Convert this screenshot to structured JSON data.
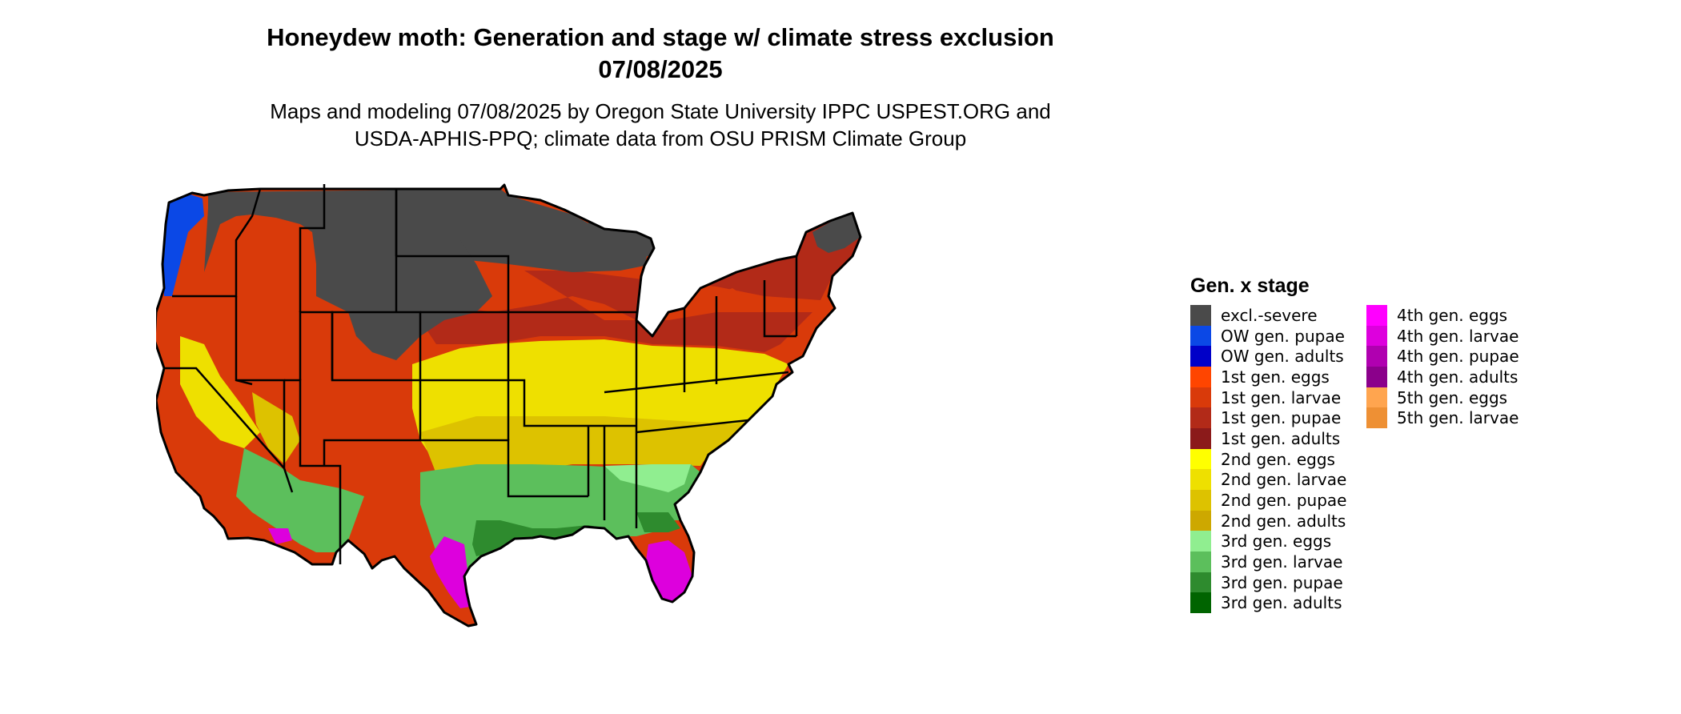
{
  "title": {
    "line1": "Honeydew moth: Generation and stage w/ climate stress exclusion",
    "line2": "07/08/2025"
  },
  "subtitle": {
    "line1": "Maps and modeling 07/08/2025 by Oregon State University IPPC USPEST.ORG and",
    "line2": "USDA-APHIS-PPQ; climate data from OSU PRISM Climate Group"
  },
  "legend": {
    "title": "Gen. x stage",
    "column1": [
      {
        "label": "excl.-severe",
        "color": "#4a4a4a"
      },
      {
        "label": "OW gen. pupae",
        "color": "#0b48e6"
      },
      {
        "label": "OW gen. adults",
        "color": "#0000c8"
      },
      {
        "label": "1st gen. eggs",
        "color": "#ff4500"
      },
      {
        "label": "1st gen. larvae",
        "color": "#d93a0a"
      },
      {
        "label": "1st gen. pupae",
        "color": "#b22a18"
      },
      {
        "label": "1st gen. adults",
        "color": "#8b1a1a"
      },
      {
        "label": "2nd gen. eggs",
        "color": "#ffff00"
      },
      {
        "label": "2nd gen. larvae",
        "color": "#eee000"
      },
      {
        "label": "2nd gen. pupae",
        "color": "#ddc200"
      },
      {
        "label": "2nd gen. adults",
        "color": "#cda800"
      },
      {
        "label": "3rd gen. eggs",
        "color": "#90ee90"
      },
      {
        "label": "3rd gen. larvae",
        "color": "#5cbf5c"
      },
      {
        "label": "3rd gen. pupae",
        "color": "#2e8b2e"
      },
      {
        "label": "3rd gen. adults",
        "color": "#006400"
      }
    ],
    "column2": [
      {
        "label": "4th gen. eggs",
        "color": "#ff00ff"
      },
      {
        "label": "4th gen. larvae",
        "color": "#dd00dd"
      },
      {
        "label": "4th gen. pupae",
        "color": "#b000b0"
      },
      {
        "label": "4th gen. adults",
        "color": "#8b008b"
      },
      {
        "label": "5th gen. eggs",
        "color": "#ffa54f"
      },
      {
        "label": "5th gen. larvae",
        "color": "#ee9034"
      }
    ]
  }
}
